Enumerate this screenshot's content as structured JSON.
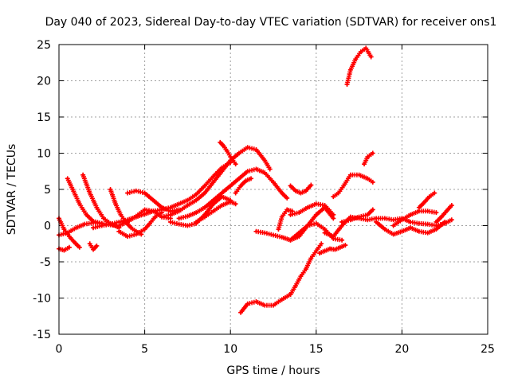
{
  "chart_data": {
    "type": "scatter",
    "title": "Day 040 of 2023, Sidereal Day-to-day VTEC variation (SDTVAR) for receiver ons1",
    "xlabel": "GPS time / hours",
    "ylabel": "SDTVAR / TECUs",
    "xlim": [
      0,
      25
    ],
    "ylim": [
      -15,
      25
    ],
    "xticks": [
      0,
      5,
      10,
      15,
      20,
      25
    ],
    "yticks": [
      -15,
      -10,
      -5,
      0,
      5,
      10,
      15,
      20,
      25
    ],
    "xtick_labels": [
      "0",
      "5",
      "10",
      "15",
      "20",
      "25"
    ],
    "ytick_labels": [
      "-15",
      "-10",
      "-5",
      "0",
      "5",
      "10",
      "15",
      "20",
      "25"
    ],
    "grid": true,
    "marker": "+",
    "color": "#ff0000",
    "series": [
      {
        "name": "arc-01",
        "x": [
          0.0,
          0.3,
          0.6,
          0.9,
          1.2
        ],
        "y": [
          1.0,
          -0.5,
          -1.5,
          -2.3,
          -3.0
        ]
      },
      {
        "name": "arc-02",
        "x": [
          0.0,
          0.3,
          0.6
        ],
        "y": [
          -3.2,
          -3.4,
          -3.0
        ]
      },
      {
        "name": "arc-03",
        "x": [
          0.0,
          0.5,
          1.0,
          1.5,
          2.0,
          2.5
        ],
        "y": [
          -1.3,
          -1.0,
          -0.3,
          0.2,
          0.4,
          0.3
        ]
      },
      {
        "name": "arc-04",
        "x": [
          0.5,
          0.8,
          1.2,
          1.6,
          2.0,
          2.5,
          3.0,
          3.5,
          4.0,
          4.5,
          5.0,
          5.5,
          6.0,
          6.5
        ],
        "y": [
          6.5,
          5.0,
          3.0,
          1.5,
          0.6,
          0.3,
          0.1,
          0.0,
          0.5,
          1.3,
          2.2,
          2.0,
          1.2,
          1.0
        ]
      },
      {
        "name": "arc-05",
        "x": [
          1.4,
          1.8,
          2.2,
          2.6,
          3.0,
          3.5
        ],
        "y": [
          7.0,
          4.5,
          2.5,
          1.0,
          0.3,
          -0.3
        ]
      },
      {
        "name": "arc-06",
        "x": [
          1.8,
          2.0,
          2.2
        ],
        "y": [
          -2.5,
          -3.3,
          -2.8
        ]
      },
      {
        "name": "arc-07",
        "x": [
          2.0,
          2.5,
          3.0,
          3.5,
          4.0,
          4.5,
          5.0,
          5.5,
          6.0,
          6.5,
          7.0,
          7.5,
          8.0,
          8.5,
          9.0,
          9.5,
          10.0
        ],
        "y": [
          -0.3,
          0.0,
          0.2,
          0.5,
          0.8,
          1.2,
          1.6,
          2.0,
          2.2,
          2.5,
          3.0,
          3.5,
          4.3,
          5.5,
          6.8,
          8.0,
          8.7
        ]
      },
      {
        "name": "arc-08",
        "x": [
          3.0,
          3.3,
          3.6,
          3.9,
          4.2,
          4.5,
          4.8
        ],
        "y": [
          5.0,
          3.0,
          1.5,
          0.5,
          -0.3,
          -0.8,
          -1.2
        ]
      },
      {
        "name": "arc-09",
        "x": [
          3.5,
          4.0,
          4.5,
          5.0,
          5.3,
          5.6,
          6.0
        ],
        "y": [
          -0.8,
          -1.5,
          -1.2,
          -0.5,
          0.3,
          1.2,
          1.8
        ]
      },
      {
        "name": "arc-10",
        "x": [
          4.0,
          4.5,
          5.0,
          5.5,
          6.0,
          6.5,
          7.0
        ],
        "y": [
          4.5,
          4.8,
          4.5,
          3.5,
          2.5,
          2.0,
          2.2
        ]
      },
      {
        "name": "arc-11",
        "x": [
          6.0,
          6.5,
          7.0,
          7.5,
          8.0,
          8.5,
          9.0,
          9.5,
          10.0,
          10.5,
          11.0,
          11.5,
          12.0,
          12.3
        ],
        "y": [
          1.2,
          1.5,
          2.0,
          2.8,
          3.5,
          4.5,
          6.0,
          7.5,
          9.0,
          10.0,
          10.8,
          10.5,
          9.0,
          7.8
        ]
      },
      {
        "name": "arc-12",
        "x": [
          6.5,
          7.0,
          7.5,
          8.0,
          8.5,
          9.0,
          9.5,
          10.0
        ],
        "y": [
          0.5,
          0.2,
          0.0,
          0.3,
          1.5,
          3.0,
          4.0,
          3.5
        ]
      },
      {
        "name": "arc-13",
        "x": [
          7.0,
          7.5,
          8.0,
          8.5,
          9.0,
          9.5,
          10.0,
          10.5,
          11.0,
          11.5,
          12.0,
          12.5,
          13.0,
          13.3
        ],
        "y": [
          1.0,
          1.3,
          1.8,
          2.5,
          3.5,
          4.5,
          5.5,
          6.5,
          7.5,
          7.8,
          7.3,
          6.0,
          4.5,
          3.8
        ]
      },
      {
        "name": "arc-14",
        "x": [
          8.0,
          8.5,
          9.0,
          9.5,
          10.0,
          10.3
        ],
        "y": [
          0.5,
          1.2,
          2.0,
          2.8,
          3.3,
          3.0
        ]
      },
      {
        "name": "arc-15",
        "x": [
          9.4,
          9.6,
          9.8,
          10.0,
          10.3
        ],
        "y": [
          11.5,
          11.0,
          10.3,
          9.5,
          8.5
        ]
      },
      {
        "name": "arc-16",
        "x": [
          10.3,
          10.6,
          10.9,
          11.2
        ],
        "y": [
          4.5,
          5.5,
          6.2,
          6.5
        ]
      },
      {
        "name": "arc-17",
        "x": [
          10.6,
          11.0,
          11.5,
          12.0,
          12.5,
          13.0,
          13.5
        ],
        "y": [
          -12.0,
          -10.8,
          -10.5,
          -11.0,
          -11.0,
          -10.2,
          -9.5
        ]
      },
      {
        "name": "arc-18",
        "x": [
          13.5,
          13.8,
          14.1,
          14.4,
          14.7,
          15.0,
          15.3
        ],
        "y": [
          -9.5,
          -8.3,
          -7.0,
          -6.0,
          -4.5,
          -3.5,
          -2.5
        ]
      },
      {
        "name": "arc-19",
        "x": [
          11.5,
          12.0,
          12.5,
          13.0,
          13.5,
          14.0,
          14.5,
          15.0,
          15.5,
          16.0
        ],
        "y": [
          -0.8,
          -1.0,
          -1.3,
          -1.6,
          -2.0,
          -1.5,
          0.0,
          1.5,
          2.5,
          1.0
        ]
      },
      {
        "name": "arc-20",
        "x": [
          12.8,
          13.0,
          13.3,
          13.6
        ],
        "y": [
          -0.5,
          1.2,
          2.2,
          2.0
        ]
      },
      {
        "name": "arc-21",
        "x": [
          13.5,
          14.0,
          14.5,
          15.0,
          15.5,
          16.0
        ],
        "y": [
          1.5,
          1.8,
          2.5,
          3.0,
          2.8,
          1.5
        ]
      },
      {
        "name": "arc-22",
        "x": [
          13.5,
          13.8,
          14.1,
          14.4,
          14.7
        ],
        "y": [
          5.5,
          4.8,
          4.5,
          4.8,
          5.6
        ]
      },
      {
        "name": "arc-23",
        "x": [
          13.5,
          14.0,
          14.5,
          15.0,
          15.5,
          16.0,
          16.5
        ],
        "y": [
          -2.0,
          -1.0,
          0.0,
          0.3,
          -0.5,
          -1.8,
          -2.0
        ]
      },
      {
        "name": "arc-24",
        "x": [
          15.2,
          15.5,
          15.8,
          16.1,
          16.4,
          16.7
        ],
        "y": [
          -3.8,
          -3.5,
          -3.2,
          -3.3,
          -3.0,
          -2.7
        ]
      },
      {
        "name": "arc-25",
        "x": [
          16.0,
          16.3,
          16.6,
          17.0,
          17.5,
          18.0,
          18.3
        ],
        "y": [
          4.0,
          4.5,
          5.5,
          7.0,
          7.0,
          6.5,
          6.0
        ]
      },
      {
        "name": "arc-26",
        "x": [
          15.5,
          16.0,
          16.5,
          17.0,
          17.5,
          18.0,
          18.5,
          19.0,
          19.5,
          20.0,
          20.5,
          21.0,
          21.5,
          22.0,
          22.5,
          22.9
        ],
        "y": [
          -1.0,
          -1.5,
          0.0,
          1.2,
          1.0,
          0.8,
          1.0,
          1.0,
          0.8,
          1.0,
          0.5,
          0.3,
          0.2,
          0.0,
          0.3,
          0.8
        ]
      },
      {
        "name": "arc-27",
        "x": [
          16.5,
          17.0,
          17.5,
          18.0,
          18.3
        ],
        "y": [
          0.5,
          0.8,
          1.2,
          1.5,
          2.2
        ]
      },
      {
        "name": "arc-28",
        "x": [
          16.8,
          17.0,
          17.3,
          17.6,
          17.9,
          18.2
        ],
        "y": [
          19.5,
          21.5,
          23.0,
          24.0,
          24.5,
          23.3
        ]
      },
      {
        "name": "arc-29",
        "x": [
          17.8,
          18.0,
          18.3
        ],
        "y": [
          8.5,
          9.5,
          10.0
        ]
      },
      {
        "name": "arc-30",
        "x": [
          18.5,
          19.0,
          19.5,
          20.0,
          20.5,
          21.0,
          21.5,
          22.0,
          22.5
        ],
        "y": [
          0.5,
          -0.5,
          -1.2,
          -0.8,
          -0.3,
          -0.8,
          -1.0,
          -0.5,
          0.5
        ]
      },
      {
        "name": "arc-31",
        "x": [
          19.5,
          20.0,
          20.5,
          21.0,
          21.5,
          22.0
        ],
        "y": [
          0.0,
          0.8,
          1.5,
          2.0,
          2.0,
          1.8
        ]
      },
      {
        "name": "arc-32",
        "x": [
          21.0,
          21.3,
          21.6,
          21.9
        ],
        "y": [
          2.5,
          3.2,
          4.0,
          4.5
        ]
      },
      {
        "name": "arc-33",
        "x": [
          22.0,
          22.3,
          22.6,
          22.9
        ],
        "y": [
          0.5,
          1.2,
          2.0,
          2.8
        ]
      }
    ]
  }
}
